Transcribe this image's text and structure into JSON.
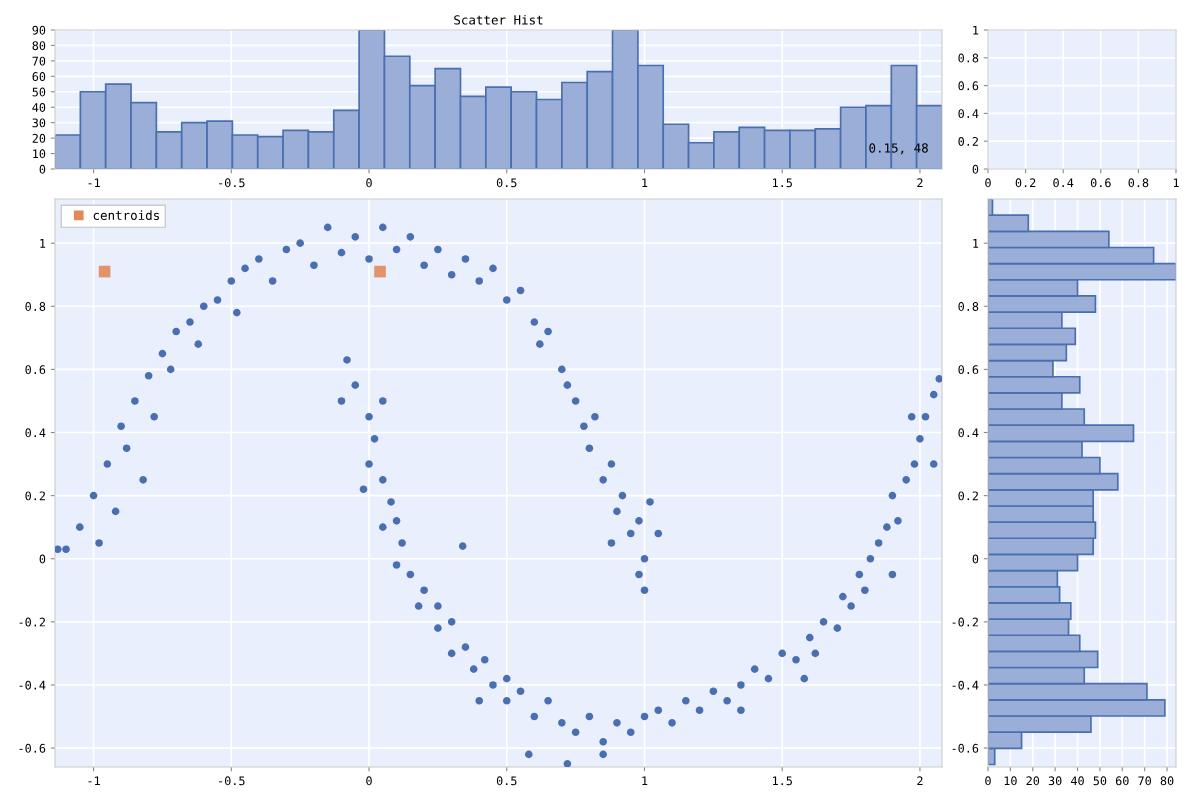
{
  "chart_data": [
    {
      "type": "histogram",
      "title": "Scatter Hist",
      "color": "#9aaed8",
      "bins": [
        -1.14,
        -1.048,
        -0.956,
        -0.864,
        -0.772,
        -0.68,
        -0.588,
        -0.496,
        -0.404,
        -0.312,
        -0.22,
        -0.128,
        -0.036,
        0.056,
        0.148,
        0.24,
        0.332,
        0.424,
        0.516,
        0.608,
        0.7,
        0.792,
        0.884,
        0.976,
        1.068,
        1.16,
        1.252,
        1.344,
        1.436,
        1.528,
        1.62,
        1.712,
        1.804,
        1.896,
        1.988,
        2.08
      ],
      "values": [
        22,
        50,
        55,
        43,
        24,
        30,
        31,
        22,
        21,
        25,
        24,
        38,
        90,
        73,
        54,
        65,
        47,
        53,
        50,
        45,
        56,
        63,
        90,
        67,
        29,
        17,
        24,
        27,
        25,
        25,
        26,
        40,
        41,
        67,
        41
      ],
      "xlim": [
        -1.14,
        2.08
      ],
      "ylim": [
        0,
        90
      ],
      "xticks": [
        -1,
        -0.5,
        0,
        0.5,
        1,
        1.5,
        2
      ],
      "yticks": [
        0,
        10,
        20,
        30,
        40,
        50,
        60,
        70,
        80,
        90
      ],
      "grid": true,
      "annotations": [
        "0.15, 48"
      ]
    },
    {
      "type": "scatter",
      "xlim": [
        0,
        1
      ],
      "ylim": [
        0,
        1
      ],
      "xticks": [
        0,
        0.2,
        0.4,
        0.6,
        0.8,
        1
      ],
      "yticks": [
        0,
        0.2,
        0.4,
        0.6,
        0.8,
        1
      ],
      "grid": true
    },
    {
      "type": "scatter",
      "xlim": [
        -1.14,
        2.08
      ],
      "ylim": [
        -0.66,
        1.14
      ],
      "xticks": [
        -1,
        -0.5,
        0,
        0.5,
        1,
        1.5,
        2
      ],
      "yticks": [
        -0.6,
        -0.4,
        -0.2,
        0,
        0.2,
        0.4,
        0.6,
        0.8,
        1
      ],
      "grid": true,
      "legend": "top left",
      "series": [
        {
          "color": "#4a6fb0",
          "marker": "circle",
          "x": [
            -1.1,
            -1.05,
            -1.0,
            -0.98,
            -0.95,
            -0.92,
            -0.9,
            -0.88,
            -0.85,
            -0.82,
            -0.8,
            -0.78,
            -0.75,
            -0.72,
            -0.7,
            -0.65,
            -0.62,
            -0.6,
            -0.55,
            -0.5,
            -0.48,
            -0.45,
            -0.4,
            -0.35,
            -0.3,
            -0.25,
            -0.2,
            -0.15,
            -0.1,
            -0.05,
            0.0,
            0.05,
            0.1,
            0.15,
            0.2,
            0.25,
            0.3,
            0.35,
            0.4,
            0.45,
            0.5,
            0.55,
            0.6,
            0.62,
            0.65,
            0.7,
            0.72,
            0.75,
            0.78,
            0.8,
            0.82,
            0.85,
            0.88,
            0.9,
            0.92,
            0.95,
            0.98,
            1.0,
            1.02,
            1.05,
            0.98,
            1.0,
            0.88,
            -1.13,
            -0.08,
            0.34,
            -0.1,
            -0.05,
            0.0,
            0.02,
            0.05,
            0.0,
            0.05,
            -0.02,
            0.08,
            0.1,
            0.05,
            0.12,
            0.1,
            0.15,
            0.2,
            0.18,
            0.25,
            0.25,
            0.3,
            0.3,
            0.35,
            0.38,
            0.42,
            0.45,
            0.5,
            0.5,
            0.55,
            0.6,
            0.65,
            0.7,
            0.75,
            0.8,
            0.85,
            0.9,
            0.95,
            1.0,
            1.05,
            1.1,
            1.15,
            1.2,
            1.25,
            1.3,
            1.35,
            1.4,
            1.45,
            1.5,
            1.55,
            1.6,
            1.62,
            1.65,
            1.7,
            1.72,
            1.75,
            1.78,
            1.8,
            1.82,
            1.85,
            1.88,
            1.9,
            1.92,
            1.95,
            1.98,
            2.0,
            2.02,
            2.05,
            2.07,
            1.97,
            2.05,
            1.9,
            1.58,
            0.58,
            0.85,
            0.72,
            1.35,
            0.4
          ],
          "values": [
            0.03,
            0.1,
            0.2,
            0.05,
            0.3,
            0.15,
            0.42,
            0.35,
            0.5,
            0.25,
            0.58,
            0.45,
            0.65,
            0.6,
            0.72,
            0.75,
            0.68,
            0.8,
            0.82,
            0.88,
            0.78,
            0.92,
            0.95,
            0.88,
            0.98,
            1.0,
            0.93,
            1.05,
            0.97,
            1.02,
            0.95,
            1.05,
            0.98,
            1.02,
            0.93,
            0.98,
            0.9,
            0.95,
            0.88,
            0.92,
            0.82,
            0.85,
            0.75,
            0.68,
            0.72,
            0.6,
            0.55,
            0.5,
            0.42,
            0.35,
            0.45,
            0.25,
            0.3,
            0.15,
            0.2,
            0.08,
            0.12,
            0.0,
            0.18,
            0.08,
            -0.05,
            -0.1,
            0.05,
            0.03,
            0.63,
            0.04,
            0.5,
            0.55,
            0.45,
            0.38,
            0.5,
            0.3,
            0.25,
            0.22,
            0.18,
            0.12,
            0.1,
            0.05,
            -0.02,
            -0.05,
            -0.1,
            -0.15,
            -0.15,
            -0.22,
            -0.2,
            -0.3,
            -0.28,
            -0.35,
            -0.32,
            -0.4,
            -0.38,
            -0.45,
            -0.42,
            -0.5,
            -0.45,
            -0.52,
            -0.55,
            -0.5,
            -0.58,
            -0.52,
            -0.55,
            -0.5,
            -0.48,
            -0.52,
            -0.45,
            -0.48,
            -0.42,
            -0.45,
            -0.4,
            -0.35,
            -0.38,
            -0.3,
            -0.32,
            -0.25,
            -0.3,
            -0.2,
            -0.22,
            -0.12,
            -0.15,
            -0.05,
            -0.1,
            0.0,
            0.05,
            0.1,
            0.2,
            0.12,
            0.25,
            0.3,
            0.38,
            0.45,
            0.52,
            0.57,
            0.45,
            0.3,
            -0.05,
            -0.38,
            -0.62,
            -0.62,
            -0.65,
            -0.48,
            -0.45
          ]
        },
        {
          "name": "centroids",
          "color": "#e08a5a",
          "marker": "square",
          "x": [
            -0.96,
            0.04
          ],
          "values": [
            0.91,
            0.91
          ]
        }
      ]
    },
    {
      "type": "histogram",
      "orientation": "horizontal",
      "color": "#9aaed8",
      "bins": [
        -0.652,
        -0.6008,
        -0.5496,
        -0.4984,
        -0.4472,
        -0.396,
        -0.3448,
        -0.2936,
        -0.2424,
        -0.1912,
        -0.14,
        -0.0888,
        -0.0376,
        0.0136,
        0.0648,
        0.116,
        0.1672,
        0.2184,
        0.2696,
        0.3208,
        0.372,
        0.4232,
        0.4744,
        0.5256,
        0.5768,
        0.628,
        0.6792,
        0.7304,
        0.7816,
        0.8328,
        0.884,
        0.9352,
        0.9864,
        1.0376,
        1.0888,
        1.14
      ],
      "values": [
        3,
        15,
        46,
        79,
        71,
        43,
        49,
        41,
        36,
        37,
        32,
        31,
        40,
        47,
        48,
        47,
        47,
        58,
        50,
        42,
        65,
        43,
        33,
        41,
        29,
        35,
        39,
        33,
        48,
        40,
        84,
        74,
        54,
        18,
        2
      ],
      "xlim": [
        0,
        84
      ],
      "ylim": [
        -0.66,
        1.14
      ],
      "xticks": [
        0,
        10,
        20,
        30,
        40,
        50,
        60,
        70,
        80
      ],
      "yticks": [
        -0.6,
        -0.4,
        -0.2,
        0,
        0.2,
        0.4,
        0.6,
        0.8,
        1
      ],
      "grid": true
    }
  ]
}
